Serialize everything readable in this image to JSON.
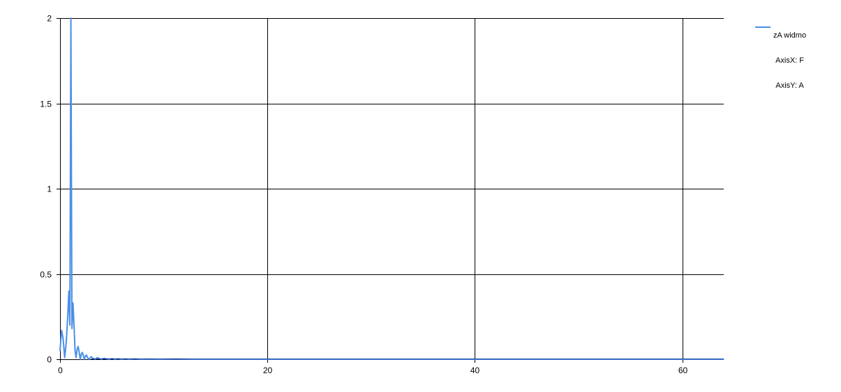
{
  "chart_data": {
    "type": "line",
    "title": "",
    "xlabel": "",
    "ylabel": "",
    "xlim": [
      0,
      64
    ],
    "ylim": [
      0,
      2
    ],
    "x_ticks": [
      0,
      20,
      40,
      60
    ],
    "x_tick_labels": [
      "0",
      "20",
      "40",
      "60"
    ],
    "y_ticks": [
      0,
      0.5,
      1,
      1.5,
      2
    ],
    "y_tick_labels": [
      "0",
      "0.5",
      "1",
      "1.5",
      "2"
    ],
    "grid": true,
    "legend_position": "top-right",
    "series": [
      {
        "name": "zA widmo",
        "legend_lines": [
          "zA widmo",
          "AxisX: F",
          "AxisY: A"
        ],
        "color": "#4a8fe7",
        "x": [
          0,
          0.15,
          0.3,
          0.45,
          0.6,
          0.75,
          0.85,
          0.95,
          1.05,
          1.15,
          1.25,
          1.35,
          1.45,
          1.55,
          1.65,
          1.75,
          1.85,
          1.95,
          2.05,
          2.15,
          2.25,
          2.35,
          2.45,
          2.55,
          2.65,
          2.8,
          3.0,
          3.2,
          3.4,
          3.6,
          3.8,
          4.0,
          4.25,
          4.5,
          4.75,
          5.0,
          5.3,
          5.6,
          5.9,
          6.3,
          6.7,
          7.2,
          7.8,
          8.5,
          9.5,
          11,
          13,
          16,
          20,
          30,
          40,
          50,
          60,
          64
        ],
        "y": [
          0.05,
          0.17,
          0.12,
          0.01,
          0.1,
          0.26,
          0.4,
          0.2,
          2.0,
          0.18,
          0.33,
          0.2,
          0.05,
          0.01,
          0.06,
          0.075,
          0.04,
          0.0,
          0.03,
          0.04,
          0.02,
          0.0,
          0.02,
          0.025,
          0.01,
          0.0,
          0.015,
          0.005,
          0.0,
          0.01,
          0.004,
          0.0,
          0.006,
          0.002,
          0.0,
          0.004,
          0.0,
          0.003,
          0.0,
          0.002,
          0.0,
          0.002,
          0.0,
          0.001,
          0.0,
          0.001,
          0.0,
          0.0,
          0.0,
          0.0,
          0.0,
          0.0,
          0.0,
          0.0
        ]
      }
    ],
    "colors": {
      "axis": "#000000",
      "grid": "#000000",
      "series": "#4a8fe7",
      "baseline": "#1a3a9a"
    }
  }
}
